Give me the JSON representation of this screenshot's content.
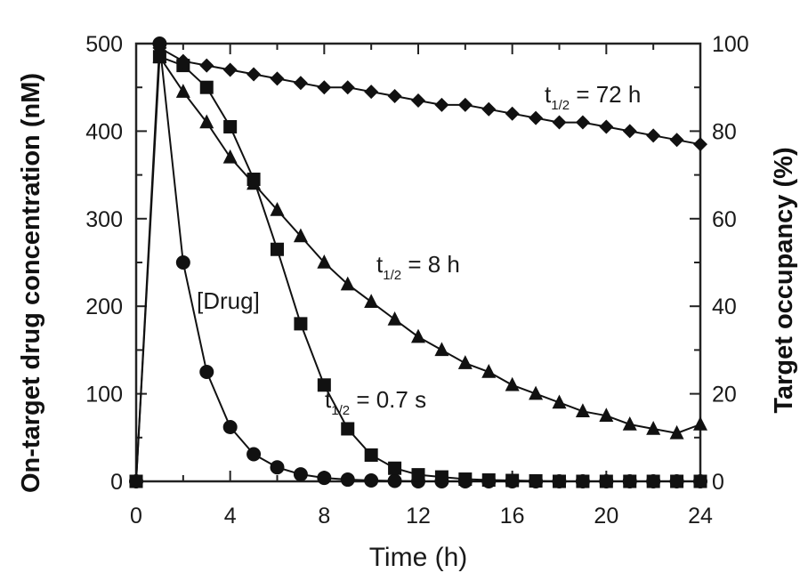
{
  "chart_data": {
    "type": "line",
    "xlabel": "Time (h)",
    "ylabel": "On-target drug concentration (nM)",
    "y2label": "Target occupancy (%)",
    "xlim": [
      0,
      24
    ],
    "ylim": [
      0,
      500
    ],
    "y2lim": [
      0,
      100
    ],
    "xticks": [
      "0",
      "4",
      "8",
      "12",
      "16",
      "20",
      "24"
    ],
    "yticks": [
      "0",
      "100",
      "200",
      "300",
      "400",
      "500"
    ],
    "y2ticks": [
      "0",
      "20",
      "40",
      "60",
      "80",
      "100"
    ],
    "grid": false,
    "series": [
      {
        "label": "[Drug]",
        "axis": "left",
        "marker": "circle",
        "x": [
          0,
          1,
          2,
          3,
          4,
          5,
          6,
          7,
          8,
          9,
          10,
          11,
          12,
          13,
          14,
          15,
          16,
          17,
          18,
          19,
          20,
          21,
          22,
          23,
          24
        ],
        "y": [
          0,
          500,
          250,
          125,
          62,
          31,
          16,
          8,
          4,
          2,
          1,
          0.5,
          0,
          0,
          0,
          0,
          0,
          0,
          0,
          0,
          0,
          0,
          0,
          0,
          0
        ]
      },
      {
        "label_main": "t",
        "label_sub": "1/2",
        "label_rest": " = 0.7 s",
        "axis": "right",
        "marker": "square",
        "x": [
          0,
          1,
          2,
          3,
          4,
          5,
          6,
          7,
          8,
          9,
          10,
          11,
          12,
          13,
          14,
          15,
          16,
          17,
          18,
          19,
          20,
          21,
          22,
          23,
          24
        ],
        "y": [
          0,
          97,
          95,
          90,
          81,
          69,
          53,
          36,
          22,
          12,
          6,
          3,
          1.5,
          1,
          0.5,
          0.3,
          0.2,
          0.1,
          0,
          0,
          0,
          0,
          0,
          0,
          0
        ]
      },
      {
        "label_main": "t",
        "label_sub": "1/2",
        "label_rest": " = 8 h",
        "axis": "right",
        "marker": "triangle",
        "x": [
          1,
          2,
          3,
          4,
          5,
          6,
          7,
          8,
          9,
          10,
          11,
          12,
          13,
          14,
          15,
          16,
          17,
          18,
          19,
          20,
          21,
          22,
          23,
          24
        ],
        "y": [
          97,
          89,
          82,
          74,
          68,
          62,
          56,
          50,
          45,
          41,
          37,
          33,
          30,
          27,
          25,
          22,
          20,
          18,
          16,
          15,
          13,
          12,
          11,
          13
        ]
      },
      {
        "label_main": "t",
        "label_sub": "1/2",
        "label_rest": " = 72 h",
        "axis": "right",
        "marker": "diamond",
        "x": [
          1,
          2,
          3,
          4,
          5,
          6,
          7,
          8,
          9,
          10,
          11,
          12,
          13,
          14,
          15,
          16,
          17,
          18,
          19,
          20,
          21,
          22,
          23,
          24
        ],
        "y": [
          99,
          96,
          95,
          94,
          93,
          92,
          91,
          90,
          90,
          89,
          88,
          87,
          86,
          86,
          85,
          84,
          83,
          82,
          82,
          81,
          80,
          79,
          78,
          77
        ]
      }
    ]
  }
}
